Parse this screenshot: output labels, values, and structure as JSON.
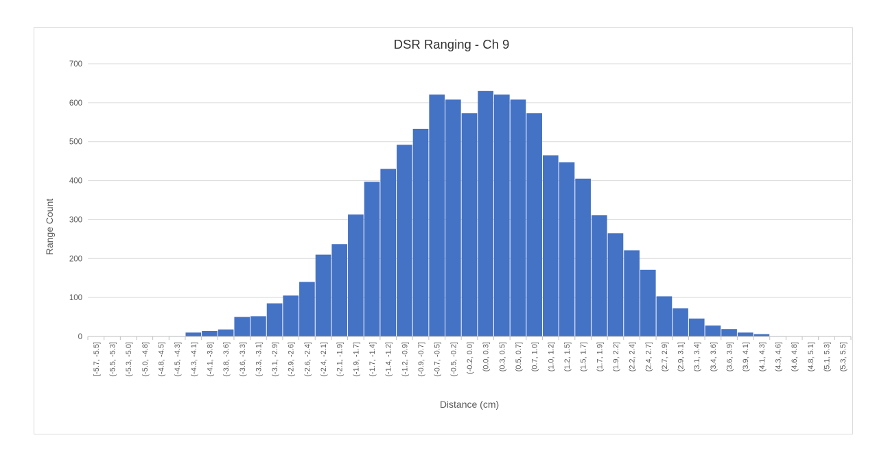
{
  "chart_data": {
    "type": "bar",
    "title": "DSR Ranging - Ch 9",
    "xlabel": "Distance (cm)",
    "ylabel": "Range Count",
    "ylim": [
      0,
      700
    ],
    "yticks": [
      "0",
      "100",
      "200",
      "300",
      "400",
      "500",
      "600",
      "700"
    ],
    "grid": true,
    "legend": "none",
    "colors": {
      "bar": "#4472C4",
      "grid": "#d9d9d9",
      "axis": "#bfbfbf"
    },
    "categories": [
      "[-5.7, -5.5]",
      "(-5.5, -5.3]",
      "(-5.3, -5.0]",
      "(-5.0, -4.8]",
      "(-4.8, -4.5]",
      "(-4.5, -4.3]",
      "(-4.3, -4.1]",
      "(-4.1, -3.8]",
      "(-3.8, -3.6]",
      "(-3.6, -3.3]",
      "(-3.3, -3.1]",
      "(-3.1, -2.9]",
      "(-2.9, -2.6]",
      "(-2.6, -2.4]",
      "(-2.4, -2.1]",
      "(-2.1, -1.9]",
      "(-1.9, -1.7]",
      "(-1.7, -1.4]",
      "(-1.4, -1.2]",
      "(-1.2, -0.9]",
      "(-0.9, -0.7]",
      "(-0.7, -0.5]",
      "(-0.5, -0.2]",
      "(-0.2, 0.0]",
      "(0.0, 0.3]",
      "(0.3, 0.5]",
      "(0.5, 0.7]",
      "(0.7, 1.0]",
      "(1.0, 1.2]",
      "(1.2, 1.5]",
      "(1.5, 1.7]",
      "(1.7, 1.9]",
      "(1.9, 2.2]",
      "(2.2, 2.4]",
      "(2.4, 2.7]",
      "(2.7, 2.9]",
      "(2.9, 3.1]",
      "(3.1, 3.4]",
      "(3.4, 3.6]",
      "(3.6, 3.9]",
      "(3.9, 4.1]",
      "(4.1, 4.3]",
      "(4.3, 4.6]",
      "(4.6, 4.8]",
      "(4.8, 5.1]",
      "(5.1, 5.3]",
      "(5.3, 5.5]"
    ],
    "values": [
      0,
      0,
      0,
      0,
      0,
      1,
      10,
      14,
      18,
      50,
      52,
      85,
      105,
      140,
      210,
      237,
      313,
      397,
      430,
      492,
      533,
      621,
      608,
      573,
      630,
      621,
      608,
      573,
      465,
      447,
      405,
      311,
      265,
      221,
      171,
      103,
      72,
      46,
      28,
      19,
      10,
      6,
      1,
      0,
      0,
      0,
      0
    ]
  }
}
